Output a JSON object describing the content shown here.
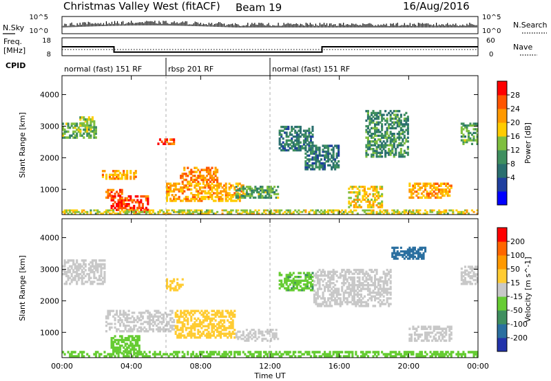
{
  "header": {
    "title": "Christmas Valley West (fitACF)",
    "beam": "Beam 19",
    "date": "16/Aug/2016"
  },
  "top_panels": {
    "nsky_label": "N.Sky",
    "nsearch_label": "N.Search",
    "nsky_ticks": [
      "10^5",
      "10^0"
    ],
    "nsearch_ticks": [
      "10^5",
      "10^0"
    ],
    "freq_label_1": "Freq.",
    "freq_label_2": "[MHz]",
    "freq_ticks": [
      "18",
      "8"
    ],
    "nave_label": "Nave",
    "nave_ticks": [
      "60",
      "0"
    ],
    "cpid_label": "CPID",
    "cpid_segments": [
      {
        "label": "normal (fast) 151 RF",
        "start": 0,
        "end": 6
      },
      {
        "label": "rbsp 201 RF",
        "start": 6,
        "end": 12
      },
      {
        "label": "normal (fast) 151 RF",
        "start": 12,
        "end": 24
      }
    ],
    "freq_mhz": [
      {
        "start": 0,
        "end": 3,
        "value": 13
      },
      {
        "start": 3,
        "end": 15,
        "value": 10
      },
      {
        "start": 15,
        "end": 24,
        "value": 13
      }
    ]
  },
  "axes": {
    "x_label": "Time UT",
    "x_ticks": [
      "00:00",
      "04:00",
      "08:00",
      "12:00",
      "16:00",
      "20:00",
      "00:00"
    ],
    "y_label": "Slant Range [km]",
    "y_ticks": [
      "1000",
      "2000",
      "3000",
      "4000"
    ]
  },
  "power_colorbar": {
    "label": "Power [dB]",
    "ticks": [
      "28",
      "24",
      "20",
      "16",
      "12",
      "8",
      "4"
    ],
    "colors": [
      "#0000ff",
      "#1f3f9f",
      "#2a6f6f",
      "#3f8f5f",
      "#7fbf3f",
      "#ffcc00",
      "#ff9900",
      "#ff5500",
      "#ff0000"
    ]
  },
  "velocity_colorbar": {
    "label": "Velocity [m s^-1]",
    "ticks": [
      "200",
      "100",
      "50",
      "15",
      "-15",
      "-50",
      "-100",
      "-200"
    ],
    "colors": [
      "#2233aa",
      "#2a6fa0",
      "#3f8f5f",
      "#66cc33",
      "#c8c8c8",
      "#ffcc33",
      "#ff9900",
      "#ff6600",
      "#ff0000"
    ]
  },
  "chart_data": [
    {
      "type": "heatmap",
      "name": "power",
      "title": "Christmas Valley West (fitACF)",
      "xlabel": "Time UT",
      "ylabel": "Slant Range [km]",
      "xlim": [
        0,
        24
      ],
      "ylim": [
        200,
        4600
      ],
      "colorbar_label": "Power [dB]",
      "colorbar_range": [
        0,
        32
      ],
      "regions": [
        {
          "t": [
            0.0,
            2.0
          ],
          "r": [
            2600,
            3100
          ],
          "value": 14
        },
        {
          "t": [
            1.0,
            2.0
          ],
          "r": [
            2800,
            3300
          ],
          "value": 16
        },
        {
          "t": [
            2.3,
            4.3
          ],
          "r": [
            1300,
            1600
          ],
          "value": 22
        },
        {
          "t": [
            2.5,
            3.5
          ],
          "r": [
            700,
            1000
          ],
          "value": 26
        },
        {
          "t": [
            2.8,
            5.0
          ],
          "r": [
            250,
            800
          ],
          "value": 28
        },
        {
          "t": [
            6.0,
            10.5
          ],
          "r": [
            600,
            1200
          ],
          "value": 22
        },
        {
          "t": [
            6.8,
            9.0
          ],
          "r": [
            1200,
            1700
          ],
          "value": 24
        },
        {
          "t": [
            10.0,
            12.5
          ],
          "r": [
            700,
            1100
          ],
          "value": 14
        },
        {
          "t": [
            5.5,
            6.5
          ],
          "r": [
            2400,
            2600
          ],
          "value": 26
        },
        {
          "t": [
            12.5,
            14.5
          ],
          "r": [
            2200,
            3000
          ],
          "value": 10
        },
        {
          "t": [
            14.0,
            16.0
          ],
          "r": [
            1600,
            2400
          ],
          "value": 10
        },
        {
          "t": [
            16.5,
            18.5
          ],
          "r": [
            400,
            1100
          ],
          "value": 20
        },
        {
          "t": [
            17.5,
            20.0
          ],
          "r": [
            2000,
            3500
          ],
          "value": 12
        },
        {
          "t": [
            20.0,
            22.5
          ],
          "r": [
            700,
            1200
          ],
          "value": 22
        },
        {
          "t": [
            23.0,
            24.0
          ],
          "r": [
            2400,
            3100
          ],
          "value": 14
        },
        {
          "t": [
            0.0,
            24.0
          ],
          "r": [
            200,
            350
          ],
          "value": 18
        }
      ]
    },
    {
      "type": "heatmap",
      "name": "velocity",
      "xlabel": "Time UT",
      "ylabel": "Slant Range [km]",
      "xlim": [
        0,
        24
      ],
      "ylim": [
        200,
        4600
      ],
      "colorbar_label": "Velocity [m s^-1]",
      "colorbar_range": [
        -250,
        250
      ],
      "regions": [
        {
          "t": [
            0.0,
            2.5
          ],
          "r": [
            2500,
            3300
          ],
          "value": 0
        },
        {
          "t": [
            2.5,
            6.5
          ],
          "r": [
            1000,
            1700
          ],
          "value": 0
        },
        {
          "t": [
            2.8,
            4.5
          ],
          "r": [
            300,
            900
          ],
          "value": -60
        },
        {
          "t": [
            6.5,
            10.0
          ],
          "r": [
            800,
            1700
          ],
          "value": 40
        },
        {
          "t": [
            10.0,
            12.5
          ],
          "r": [
            700,
            1100
          ],
          "value": 0
        },
        {
          "t": [
            6.0,
            7.0
          ],
          "r": [
            2300,
            2700
          ],
          "value": 40
        },
        {
          "t": [
            12.5,
            14.5
          ],
          "r": [
            2300,
            2900
          ],
          "value": -80
        },
        {
          "t": [
            14.5,
            19.0
          ],
          "r": [
            1800,
            3000
          ],
          "value": 0
        },
        {
          "t": [
            19.0,
            21.0
          ],
          "r": [
            3300,
            3700
          ],
          "value": -180
        },
        {
          "t": [
            20.0,
            22.5
          ],
          "r": [
            700,
            1200
          ],
          "value": 0
        },
        {
          "t": [
            23.0,
            24.0
          ],
          "r": [
            2500,
            3100
          ],
          "value": 0
        },
        {
          "t": [
            0.0,
            24.0
          ],
          "r": [
            200,
            400
          ],
          "value": -40
        }
      ]
    }
  ]
}
